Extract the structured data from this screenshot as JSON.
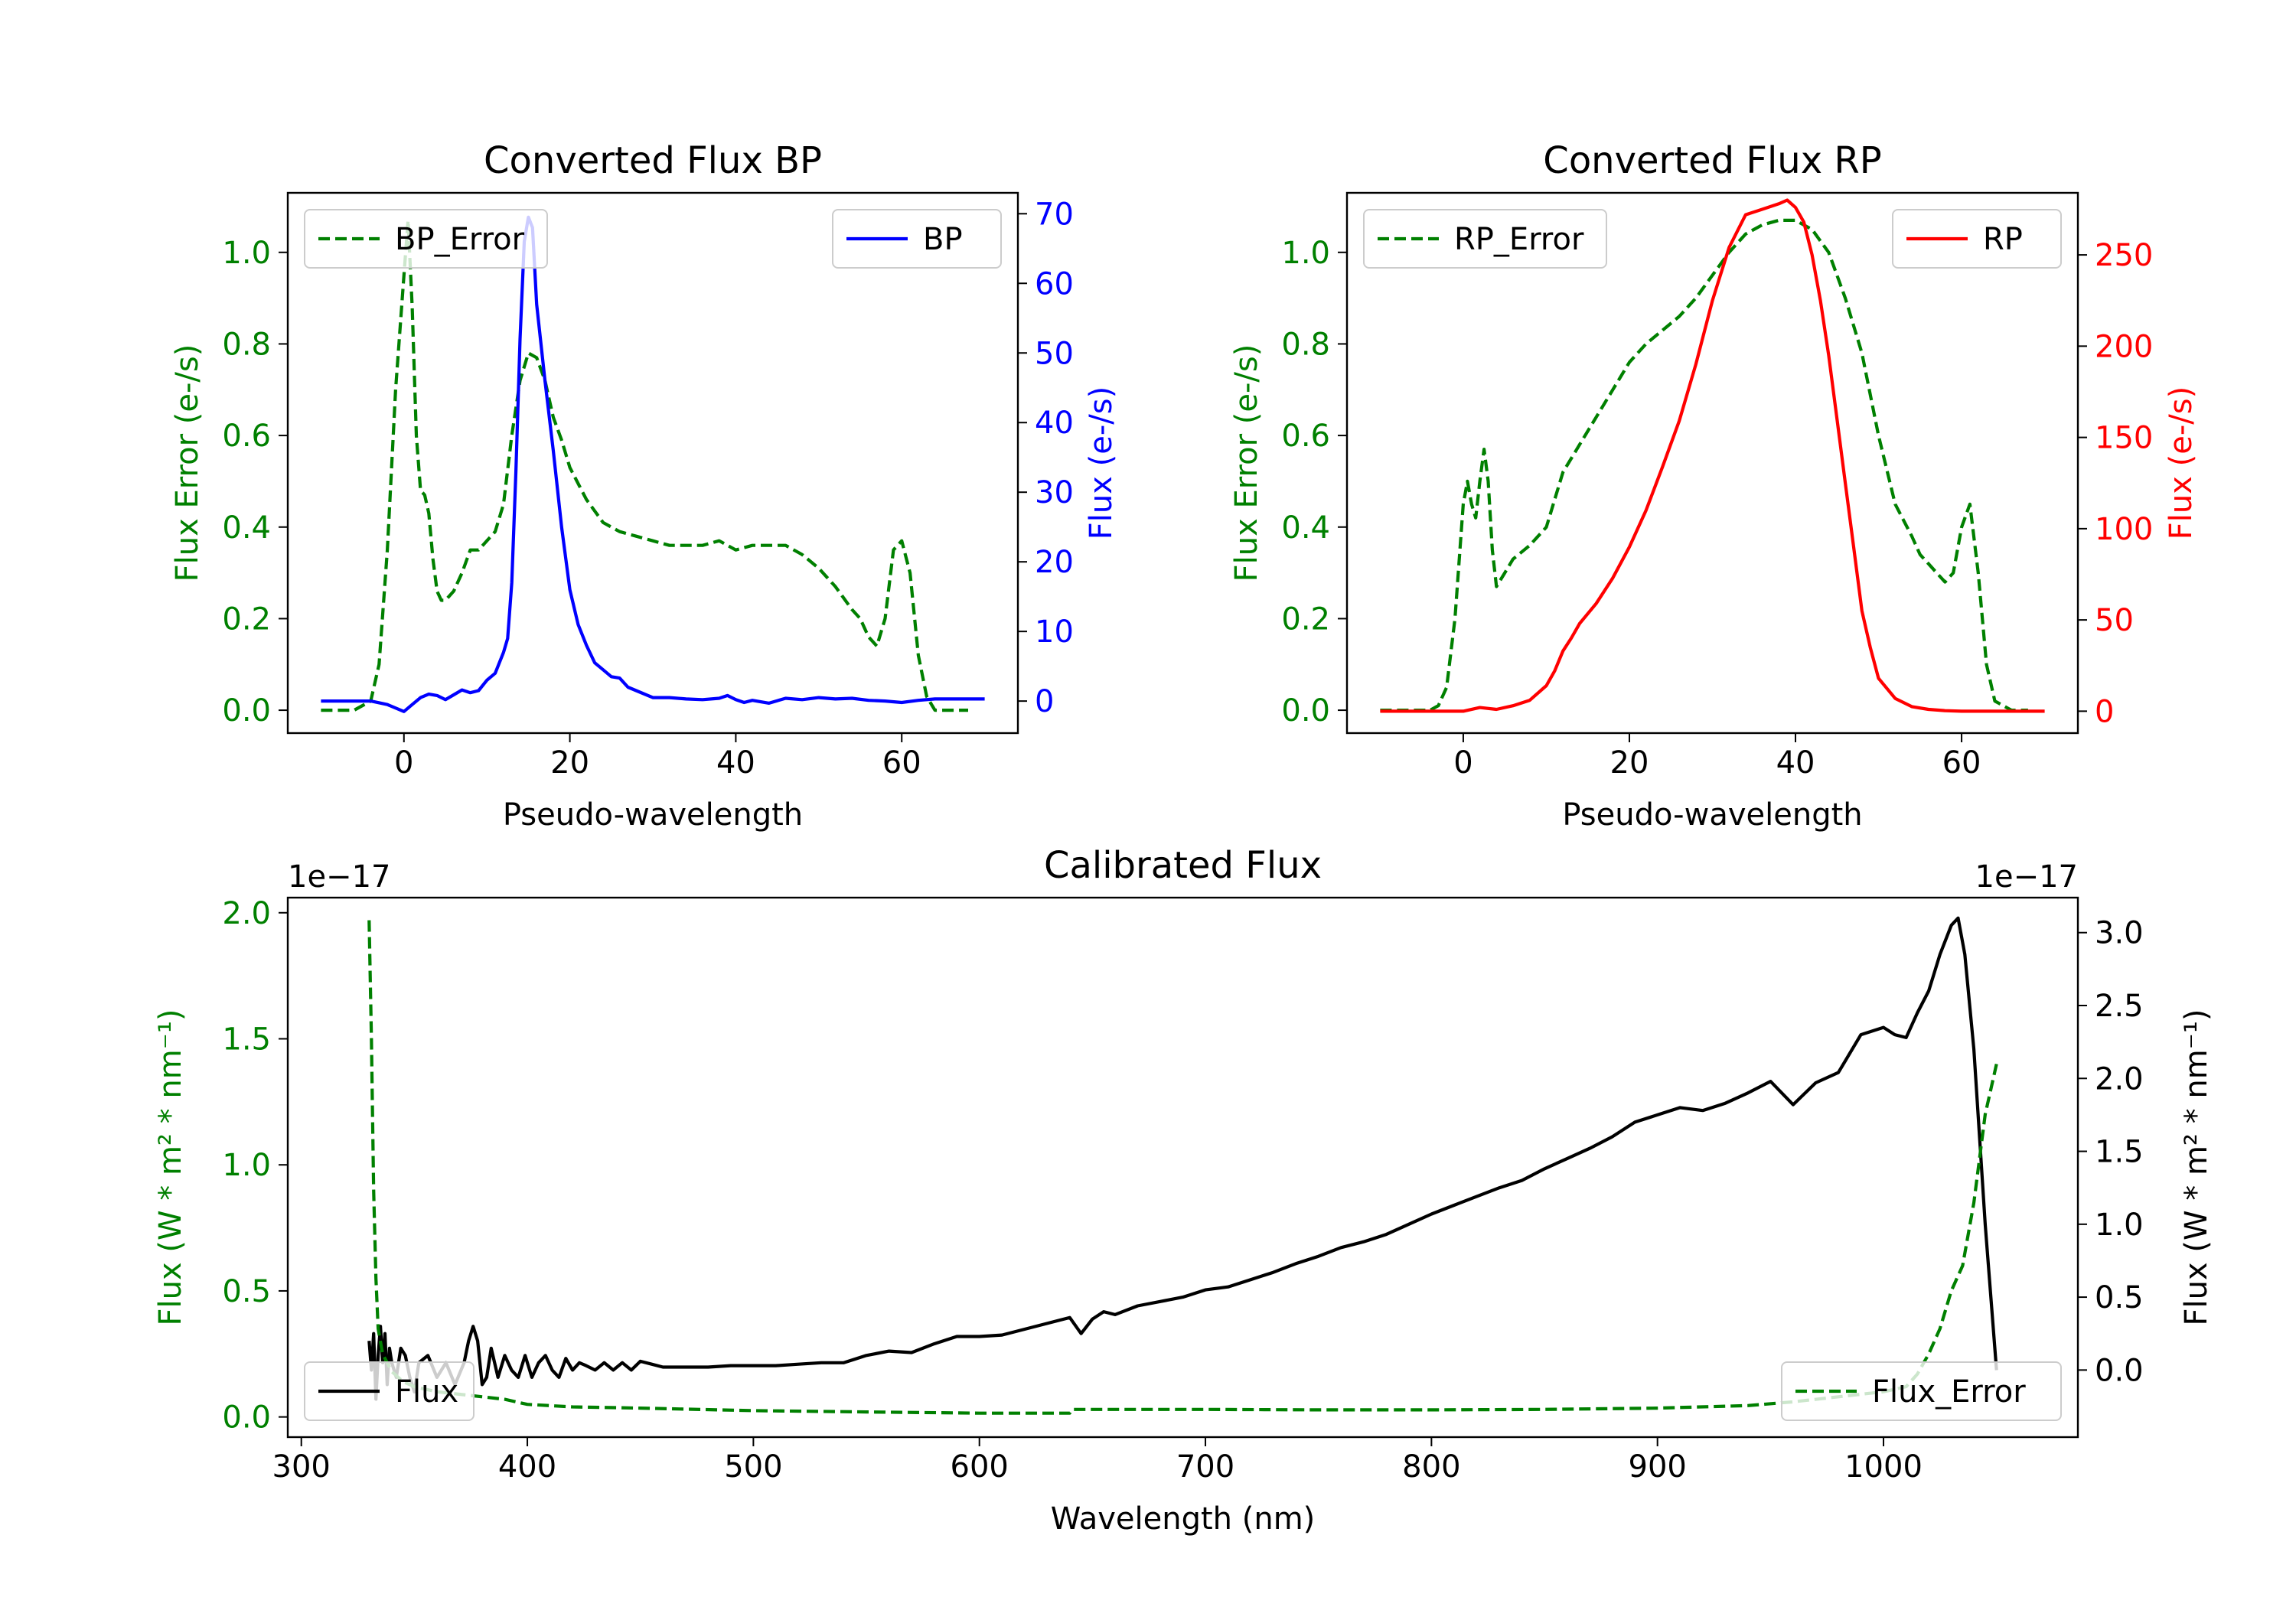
{
  "colors": {
    "bp": "#0000ff",
    "rp": "#ff0000",
    "error": "#008000",
    "flux": "#000000",
    "axis": "#000000"
  },
  "chart_data": [
    {
      "id": "bp",
      "type": "line",
      "title": "Converted Flux BP",
      "xlabel": "Pseudo-wavelength",
      "ylabel_left": "Flux Error (e-/s)",
      "ylabel_right": "Flux (e-/s)",
      "xlim": [
        -14,
        74
      ],
      "xticks": [
        0,
        20,
        40,
        60
      ],
      "xtick_labels": [
        "0",
        "20",
        "40",
        "60"
      ],
      "ylim_left": [
        -0.05,
        1.13
      ],
      "yticks_left": [
        0.0,
        0.2,
        0.4,
        0.6,
        0.8,
        1.0
      ],
      "ytick_labels_left": [
        "0.0",
        "0.2",
        "0.4",
        "0.6",
        "0.8",
        "1.0"
      ],
      "ylim_right": [
        -4.6,
        73
      ],
      "yticks_right": [
        0,
        10,
        20,
        30,
        40,
        50,
        60,
        70
      ],
      "ytick_labels_right": [
        "0",
        "10",
        "20",
        "30",
        "40",
        "50",
        "60",
        "70"
      ],
      "legend_left": {
        "label": "BP_Error",
        "position": "upper left"
      },
      "legend_right": {
        "label": "BP",
        "position": "upper right"
      },
      "series": [
        {
          "name": "BP_Error",
          "axis": "left",
          "style": "dashed",
          "color": "#008000",
          "x": [
            -10,
            -6,
            -4,
            -3,
            -2,
            -1,
            0,
            0.5,
            1,
            1.5,
            2,
            2.5,
            3,
            3.5,
            4,
            4.5,
            5,
            6,
            7,
            8,
            9,
            10,
            11,
            12,
            13,
            14,
            15,
            16,
            17,
            18,
            19,
            20,
            22,
            24,
            26,
            28,
            30,
            32,
            34,
            36,
            38,
            39,
            40,
            42,
            44,
            46,
            47,
            48,
            50,
            52,
            54,
            55,
            56,
            57,
            58,
            59,
            60,
            61,
            62,
            63,
            64,
            66,
            68
          ],
          "y": [
            0.0,
            0.0,
            0.02,
            0.1,
            0.35,
            0.7,
            0.95,
            1.07,
            0.88,
            0.6,
            0.48,
            0.47,
            0.43,
            0.33,
            0.26,
            0.24,
            0.24,
            0.26,
            0.3,
            0.35,
            0.35,
            0.37,
            0.39,
            0.45,
            0.6,
            0.72,
            0.78,
            0.77,
            0.72,
            0.64,
            0.59,
            0.53,
            0.46,
            0.41,
            0.39,
            0.38,
            0.37,
            0.36,
            0.36,
            0.36,
            0.37,
            0.36,
            0.35,
            0.36,
            0.36,
            0.36,
            0.35,
            0.34,
            0.31,
            0.27,
            0.22,
            0.2,
            0.16,
            0.14,
            0.2,
            0.35,
            0.37,
            0.3,
            0.12,
            0.03,
            0.0,
            0.0,
            0.0
          ]
        },
        {
          "name": "BP",
          "axis": "right",
          "style": "solid",
          "color": "#0000ff",
          "x": [
            -10,
            -4,
            -2,
            0,
            1,
            2,
            3,
            4,
            5,
            6,
            7,
            8,
            9,
            10,
            11,
            12,
            12.5,
            13,
            13.5,
            14,
            14.5,
            15,
            15.5,
            16,
            17,
            18,
            19,
            20,
            21,
            22,
            23,
            24,
            25,
            26,
            27,
            28,
            30,
            32,
            34,
            36,
            38,
            39,
            40,
            41,
            42,
            44,
            46,
            48,
            50,
            52,
            54,
            56,
            58,
            60,
            62,
            64,
            66,
            68,
            70
          ],
          "y": [
            0,
            0,
            -0.5,
            -1.5,
            -0.5,
            0.5,
            1,
            0.8,
            0.2,
            0.9,
            1.6,
            1.2,
            1.5,
            3,
            4,
            7,
            9,
            17,
            33,
            52,
            66,
            69.5,
            68,
            57,
            46,
            36,
            25,
            16,
            11,
            8,
            5.5,
            4.5,
            3.5,
            3.3,
            2,
            1.5,
            0.5,
            0.5,
            0.3,
            0.2,
            0.4,
            0.8,
            0.2,
            -0.2,
            0.1,
            -0.3,
            0.4,
            0.2,
            0.5,
            0.3,
            0.4,
            0.1,
            0,
            -0.2,
            0.1,
            0.3,
            0.3,
            0.3,
            0.3
          ]
        }
      ]
    },
    {
      "id": "rp",
      "type": "line",
      "title": "Converted Flux RP",
      "xlabel": "Pseudo-wavelength",
      "ylabel_left": "Flux Error (e-/s)",
      "ylabel_right": "Flux (e-/s)",
      "xlim": [
        -14,
        74
      ],
      "xticks": [
        0,
        20,
        40,
        60
      ],
      "xtick_labels": [
        "0",
        "20",
        "40",
        "60"
      ],
      "ylim_left": [
        -0.05,
        1.13
      ],
      "yticks_left": [
        0.0,
        0.2,
        0.4,
        0.6,
        0.8,
        1.0
      ],
      "ytick_labels_left": [
        "0.0",
        "0.2",
        "0.4",
        "0.6",
        "0.8",
        "1.0"
      ],
      "ylim_right": [
        -12,
        284
      ],
      "yticks_right": [
        0,
        50,
        100,
        150,
        200,
        250
      ],
      "ytick_labels_right": [
        "0",
        "50",
        "100",
        "150",
        "200",
        "250"
      ],
      "legend_left": {
        "label": "RP_Error",
        "position": "upper left"
      },
      "legend_right": {
        "label": "RP",
        "position": "upper right"
      },
      "series": [
        {
          "name": "RP_Error",
          "axis": "left",
          "style": "dashed",
          "color": "#008000",
          "x": [
            -10,
            -4,
            -3,
            -2,
            -1,
            0,
            0.5,
            1,
            1.5,
            2,
            2.5,
            3,
            3.5,
            4,
            5,
            6,
            8,
            10,
            12,
            14,
            16,
            18,
            20,
            22,
            24,
            26,
            28,
            30,
            32,
            34,
            36,
            38,
            40,
            42,
            44,
            46,
            48,
            50,
            52,
            54,
            55,
            56,
            57,
            58,
            59,
            60,
            61,
            62,
            63,
            64,
            66,
            68
          ],
          "y": [
            0.0,
            0.0,
            0.01,
            0.05,
            0.2,
            0.45,
            0.5,
            0.45,
            0.42,
            0.5,
            0.57,
            0.5,
            0.35,
            0.27,
            0.3,
            0.33,
            0.36,
            0.4,
            0.52,
            0.58,
            0.64,
            0.7,
            0.76,
            0.8,
            0.83,
            0.86,
            0.9,
            0.95,
            1.0,
            1.04,
            1.06,
            1.07,
            1.07,
            1.05,
            1.0,
            0.9,
            0.78,
            0.6,
            0.45,
            0.38,
            0.34,
            0.32,
            0.3,
            0.28,
            0.3,
            0.4,
            0.45,
            0.3,
            0.1,
            0.02,
            0.0,
            0.0
          ]
        },
        {
          "name": "RP",
          "axis": "right",
          "style": "solid",
          "color": "#ff0000",
          "x": [
            -10,
            -2,
            0,
            2,
            4,
            6,
            8,
            10,
            11,
            12,
            13,
            14,
            16,
            18,
            20,
            22,
            24,
            26,
            28,
            30,
            32,
            34,
            36,
            38,
            39,
            40,
            41,
            42,
            43,
            44,
            45,
            46,
            47,
            48,
            49,
            50,
            52,
            54,
            56,
            58,
            60,
            62,
            66,
            70
          ],
          "y": [
            0,
            0,
            0,
            2,
            1,
            3,
            6,
            14,
            22,
            33,
            40,
            48,
            59,
            73,
            90,
            110,
            134,
            159,
            190,
            225,
            254,
            272,
            275,
            278,
            280,
            276,
            268,
            250,
            225,
            195,
            160,
            125,
            90,
            55,
            35,
            18,
            7,
            2.5,
            1,
            0.3,
            0,
            0,
            0,
            0
          ]
        }
      ]
    },
    {
      "id": "calibrated",
      "type": "line",
      "title": "Calibrated Flux",
      "xlabel": "Wavelength (nm)",
      "ylabel_left": "Flux (W * m² * nm⁻¹)",
      "ylabel_right": "Flux (W * m² * nm⁻¹)",
      "offset_left": "1e−17",
      "offset_right": "1e−17",
      "xlim": [
        294,
        1086
      ],
      "xticks": [
        300,
        400,
        500,
        600,
        700,
        800,
        900,
        1000
      ],
      "xtick_labels": [
        "300",
        "400",
        "500",
        "600",
        "700",
        "800",
        "900",
        "1000"
      ],
      "ylim_left": [
        -0.08,
        2.06
      ],
      "yticks_left": [
        0.0,
        0.5,
        1.0,
        1.5,
        2.0
      ],
      "ytick_labels_left": [
        "0.0",
        "0.5",
        "1.0",
        "1.5",
        "2.0"
      ],
      "ylim_right": [
        -0.46,
        3.24
      ],
      "yticks_right": [
        0.0,
        0.5,
        1.0,
        1.5,
        2.0,
        2.5,
        3.0
      ],
      "ytick_labels_right": [
        "0.0",
        "0.5",
        "1.0",
        "1.5",
        "2.0",
        "2.5",
        "3.0"
      ],
      "legend_left": {
        "label": "Flux",
        "position": "lower left"
      },
      "legend_right": {
        "label": "Flux_Error",
        "position": "lower right"
      },
      "series": [
        {
          "name": "Flux_Error",
          "axis": "left",
          "style": "dashed",
          "color": "#008000",
          "x": [
            330,
            331,
            332,
            333,
            334,
            336,
            340,
            345,
            350,
            360,
            370,
            380,
            390,
            400,
            420,
            450,
            500,
            550,
            600,
            640,
            641,
            645,
            660,
            700,
            750,
            800,
            850,
            900,
            940,
            960,
            980,
            1000,
            1010,
            1015,
            1020,
            1025,
            1030,
            1035,
            1040,
            1045,
            1050
          ],
          "y": [
            1.97,
            1.5,
            0.9,
            0.55,
            0.35,
            0.25,
            0.18,
            0.14,
            0.12,
            0.1,
            0.09,
            0.08,
            0.07,
            0.05,
            0.04,
            0.035,
            0.025,
            0.02,
            0.015,
            0.015,
            0.03,
            0.03,
            0.03,
            0.03,
            0.028,
            0.028,
            0.03,
            0.035,
            0.045,
            0.06,
            0.08,
            0.1,
            0.12,
            0.17,
            0.25,
            0.35,
            0.5,
            0.6,
            0.85,
            1.2,
            1.4
          ]
        },
        {
          "name": "Flux",
          "axis": "right",
          "style": "solid",
          "color": "#000000",
          "x": [
            330,
            331,
            332,
            333,
            334,
            335,
            336,
            337,
            338,
            339,
            340,
            342,
            344,
            346,
            348,
            350,
            352,
            356,
            360,
            364,
            368,
            372,
            374,
            376,
            378,
            380,
            382,
            384,
            387,
            390,
            393,
            396,
            399,
            402,
            405,
            408,
            411,
            414,
            417,
            420,
            423,
            426,
            430,
            434,
            438,
            442,
            446,
            450,
            455,
            460,
            470,
            480,
            490,
            500,
            510,
            520,
            530,
            540,
            550,
            560,
            570,
            580,
            590,
            600,
            610,
            620,
            630,
            640,
            645,
            650,
            655,
            660,
            670,
            680,
            690,
            700,
            710,
            720,
            730,
            740,
            750,
            760,
            770,
            780,
            790,
            800,
            810,
            820,
            830,
            840,
            850,
            860,
            870,
            880,
            890,
            900,
            910,
            920,
            930,
            940,
            950,
            960,
            970,
            980,
            990,
            1000,
            1005,
            1010,
            1015,
            1020,
            1025,
            1030,
            1033,
            1036,
            1040,
            1045,
            1050
          ],
          "y": [
            0.2,
            0.0,
            0.25,
            -0.2,
            0.1,
            0.3,
            0.05,
            0.25,
            -0.1,
            0.15,
            0.05,
            -0.05,
            0.15,
            0.1,
            -0.05,
            -0.15,
            0.05,
            0.1,
            -0.05,
            0.05,
            -0.1,
            0.05,
            0.2,
            0.3,
            0.2,
            -0.1,
            -0.05,
            0.15,
            -0.05,
            0.1,
            0.0,
            -0.05,
            0.1,
            -0.05,
            0.05,
            0.1,
            0.0,
            -0.05,
            0.08,
            0.0,
            0.05,
            0.03,
            0.0,
            0.05,
            0.0,
            0.05,
            0.0,
            0.06,
            0.04,
            0.02,
            0.02,
            0.02,
            0.03,
            0.03,
            0.03,
            0.04,
            0.05,
            0.05,
            0.1,
            0.13,
            0.12,
            0.18,
            0.23,
            0.23,
            0.24,
            0.28,
            0.32,
            0.36,
            0.25,
            0.35,
            0.4,
            0.38,
            0.44,
            0.47,
            0.5,
            0.55,
            0.57,
            0.62,
            0.67,
            0.73,
            0.78,
            0.84,
            0.88,
            0.93,
            1.0,
            1.07,
            1.13,
            1.19,
            1.25,
            1.3,
            1.38,
            1.45,
            1.52,
            1.6,
            1.7,
            1.75,
            1.8,
            1.78,
            1.83,
            1.9,
            1.98,
            1.82,
            1.97,
            2.04,
            2.3,
            2.35,
            2.3,
            2.28,
            2.45,
            2.6,
            2.85,
            3.05,
            3.1,
            2.85,
            2.2,
            1.0,
            0.0
          ]
        }
      ]
    }
  ]
}
